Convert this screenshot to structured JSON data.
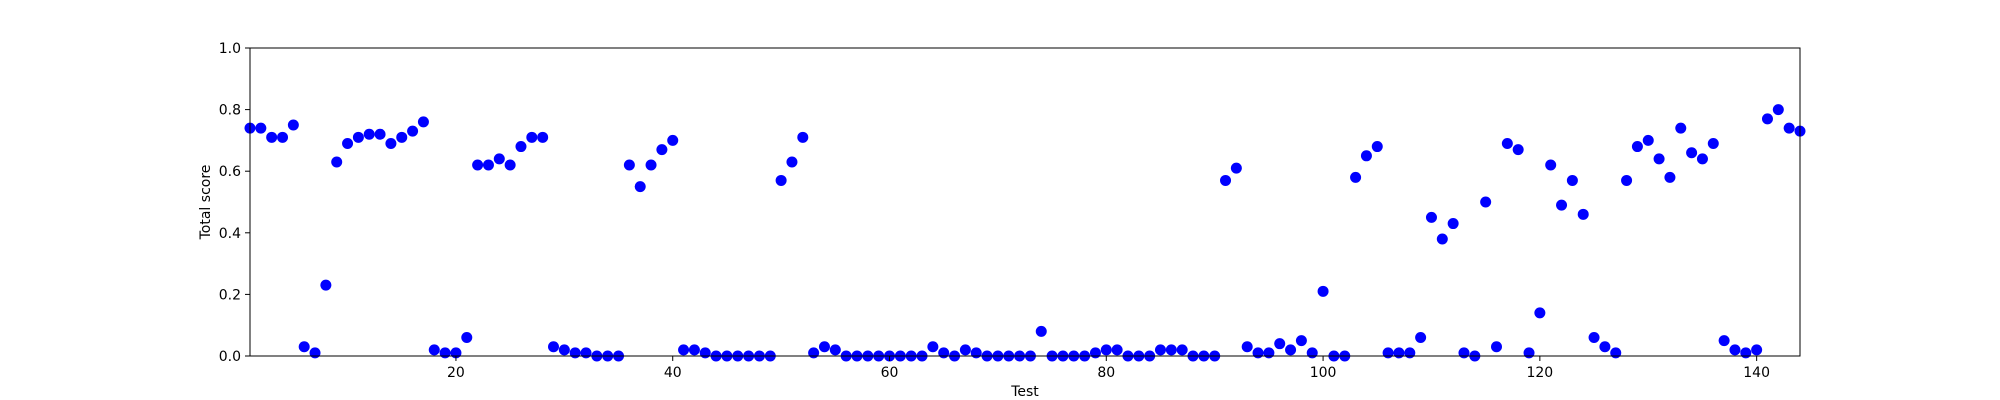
{
  "chart_data": {
    "type": "scatter",
    "xlabel": "Test",
    "ylabel": "Total score",
    "xlim": [
      1,
      144
    ],
    "ylim": [
      0.0,
      1.0
    ],
    "x_ticks": [
      20,
      40,
      60,
      80,
      100,
      120,
      140
    ],
    "x_tick_labels": [
      "20",
      "40",
      "60",
      "80",
      "100",
      "120",
      "140"
    ],
    "y_ticks": [
      0.0,
      0.2,
      0.4,
      0.6,
      0.8,
      1.0
    ],
    "y_tick_labels": [
      "0.0",
      "0.2",
      "0.4",
      "0.6",
      "0.8",
      "1.0"
    ],
    "grid": false,
    "marker_color": "#0000ff",
    "x": [
      1,
      2,
      3,
      4,
      5,
      6,
      7,
      8,
      9,
      10,
      11,
      12,
      13,
      14,
      15,
      16,
      17,
      18,
      19,
      20,
      21,
      22,
      23,
      24,
      25,
      26,
      27,
      28,
      29,
      30,
      31,
      32,
      33,
      34,
      35,
      36,
      37,
      38,
      39,
      40,
      41,
      42,
      43,
      44,
      45,
      46,
      47,
      48,
      49,
      50,
      51,
      52,
      53,
      54,
      55,
      56,
      57,
      58,
      59,
      60,
      61,
      62,
      63,
      64,
      65,
      66,
      67,
      68,
      69,
      70,
      71,
      72,
      73,
      74,
      75,
      76,
      77,
      78,
      79,
      80,
      81,
      82,
      83,
      84,
      85,
      86,
      87,
      88,
      89,
      90,
      91,
      92,
      93,
      94,
      95,
      96,
      97,
      98,
      99,
      100,
      101,
      102,
      103,
      104,
      105,
      106,
      107,
      108,
      109,
      110,
      111,
      112,
      113,
      114,
      115,
      116,
      117,
      118,
      119,
      120,
      121,
      122,
      123,
      124,
      125,
      126,
      127,
      128,
      129,
      130,
      131,
      132,
      133,
      134,
      135,
      136,
      137,
      138,
      139,
      140,
      141,
      142,
      143,
      144
    ],
    "y": [
      0.74,
      0.74,
      0.71,
      0.71,
      0.75,
      0.03,
      0.01,
      0.23,
      0.63,
      0.69,
      0.71,
      0.72,
      0.72,
      0.69,
      0.71,
      0.73,
      0.76,
      0.02,
      0.01,
      0.01,
      0.06,
      0.62,
      0.62,
      0.64,
      0.62,
      0.68,
      0.71,
      0.71,
      0.03,
      0.02,
      0.01,
      0.01,
      0.0,
      0.0,
      0.0,
      0.62,
      0.55,
      0.62,
      0.67,
      0.7,
      0.02,
      0.02,
      0.01,
      0.0,
      0.0,
      0.0,
      0.0,
      0.0,
      0.0,
      0.57,
      0.63,
      0.71,
      0.01,
      0.03,
      0.02,
      0.0,
      0.0,
      0.0,
      0.0,
      0.0,
      0.0,
      0.0,
      0.0,
      0.03,
      0.01,
      0.0,
      0.02,
      0.01,
      0.0,
      0.0,
      0.0,
      0.0,
      0.0,
      0.08,
      0.0,
      0.0,
      0.0,
      0.0,
      0.01,
      0.02,
      0.02,
      0.0,
      0.0,
      0.0,
      0.02,
      0.02,
      0.02,
      0.0,
      0.0,
      0.0,
      0.57,
      0.61,
      0.03,
      0.01,
      0.01,
      0.04,
      0.02,
      0.05,
      0.01,
      0.21,
      0.0,
      0.0,
      0.58,
      0.65,
      0.68,
      0.01,
      0.01,
      0.01,
      0.06,
      0.45,
      0.38,
      0.43,
      0.01,
      0.0,
      0.5,
      0.03,
      0.69,
      0.67,
      0.01,
      0.14,
      0.62,
      0.49,
      0.57,
      0.46,
      0.06,
      0.03,
      0.01,
      0.57,
      0.68,
      0.7,
      0.64,
      0.58,
      0.74,
      0.66,
      0.64,
      0.69,
      0.05,
      0.02,
      0.01,
      0.02,
      0.77,
      0.8,
      0.74,
      0.73
    ]
  }
}
